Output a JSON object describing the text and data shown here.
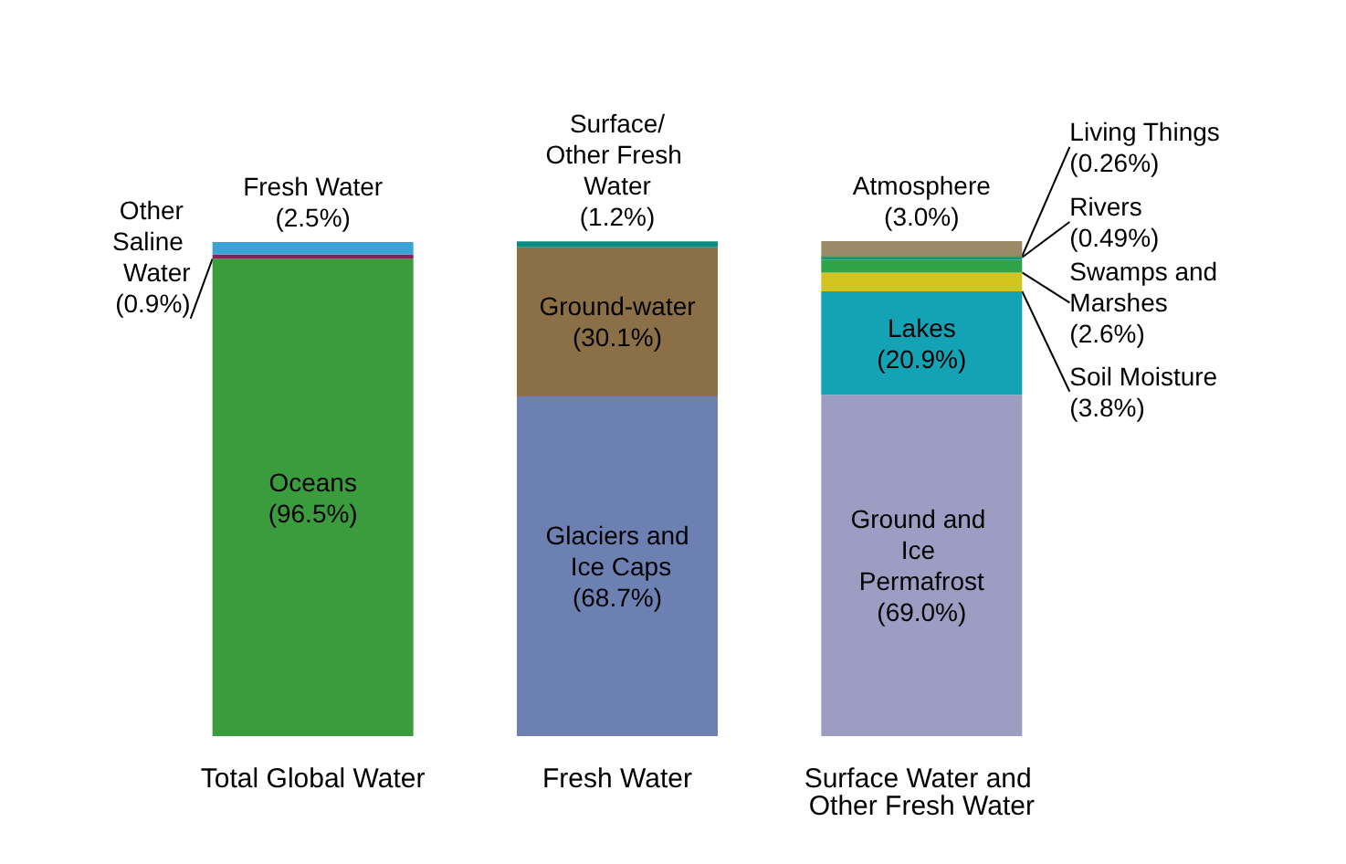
{
  "chart_data": {
    "type": "bar",
    "stacked": true,
    "categories": [
      "Total Global Water",
      "Fresh Water",
      "Surface Water and Other Fresh Water"
    ],
    "series": [
      {
        "name": "Oceans",
        "color": "#3b9c3e",
        "values": [
          96.5,
          null,
          null
        ],
        "value_labels": [
          "(96.5%)",
          null,
          null
        ]
      },
      {
        "name": "Other Saline Water",
        "color": "#8c1c5c",
        "values": [
          0.9,
          null,
          null
        ],
        "value_labels": [
          "(0.9%)",
          null,
          null
        ]
      },
      {
        "name": "Fresh Water",
        "color": "#3aa3d4",
        "values": [
          2.5,
          null,
          null
        ],
        "value_labels": [
          "(2.5%)",
          null,
          null
        ]
      },
      {
        "name": "Glaciers and Ice Caps",
        "color": "#6c81b2",
        "values": [
          null,
          68.7,
          null
        ],
        "value_labels": [
          null,
          "(68.7%)",
          null
        ]
      },
      {
        "name": "Ground-water",
        "color": "#8b6f47",
        "values": [
          null,
          30.1,
          null
        ],
        "value_labels": [
          null,
          "(30.1%)",
          null
        ]
      },
      {
        "name": "Surface/Other Fresh Water",
        "color": "#0e8c82",
        "values": [
          null,
          1.2,
          null
        ],
        "value_labels": [
          null,
          "(1.2%)",
          null
        ]
      },
      {
        "name": "Ground and Ice Permafrost",
        "color": "#9d9dc4",
        "values": [
          null,
          null,
          69.0
        ],
        "value_labels": [
          null,
          null,
          "(69.0%)"
        ]
      },
      {
        "name": "Lakes",
        "color": "#13a3b5",
        "values": [
          null,
          null,
          20.9
        ],
        "value_labels": [
          null,
          null,
          "(20.9%)"
        ]
      },
      {
        "name": "Soil Moisture",
        "color": "#d4c41e",
        "values": [
          null,
          null,
          3.8
        ],
        "value_labels": [
          null,
          null,
          "(3.8%)"
        ]
      },
      {
        "name": "Swamps and Marshes",
        "color": "#2fa348",
        "values": [
          null,
          null,
          2.6
        ],
        "value_labels": [
          null,
          null,
          "(2.6%)"
        ]
      },
      {
        "name": "Rivers",
        "color": "#12967a",
        "values": [
          null,
          null,
          0.49
        ],
        "value_labels": [
          null,
          null,
          "(0.49%)"
        ]
      },
      {
        "name": "Living Things",
        "color": "#2d7a32",
        "values": [
          null,
          null,
          0.26
        ],
        "value_labels": [
          null,
          null,
          "(0.26%)"
        ]
      },
      {
        "name": "Atmosphere",
        "color": "#9b8a68",
        "values": [
          null,
          null,
          3.0
        ],
        "value_labels": [
          null,
          null,
          "(3.0%)"
        ]
      }
    ],
    "grid": false,
    "legend": false
  }
}
